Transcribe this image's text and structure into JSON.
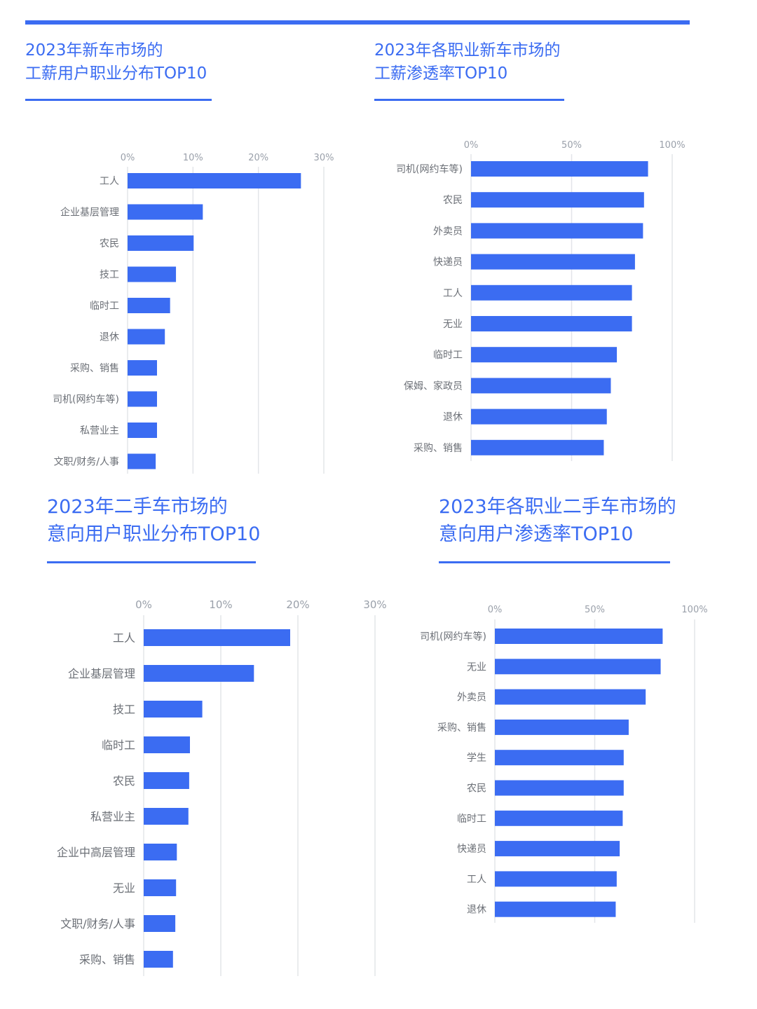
{
  "colors": {
    "accent": "#3b6cf2",
    "grid": "#e3e5e9",
    "tick_text": "#9aa0aa",
    "label_text": "#6b6f76"
  },
  "panels": [
    {
      "title_line1": "2023年新车市场的",
      "title_line2": "工薪用户职业分布TOP10"
    },
    {
      "title_line1": "2023年各职业新车市场的",
      "title_line2": "工薪渗透率TOP10"
    },
    {
      "title_line1": "2023年二手车市场的",
      "title_line2": "意向用户职业分布TOP10"
    },
    {
      "title_line1": "2023年各职业二手车市场的",
      "title_line2": "意向用户渗透率TOP10"
    }
  ],
  "chart_data": [
    {
      "type": "bar",
      "orientation": "horizontal",
      "title": "2023年新车市场的工薪用户职业分布TOP10",
      "categories": [
        "工人",
        "企业基层管理",
        "农民",
        "技工",
        "临时工",
        "退休",
        "采购、销售",
        "司机(网约车等)",
        "私营业主",
        "文职/财务/人事"
      ],
      "values": [
        26.5,
        11.5,
        10.1,
        7.4,
        6.5,
        5.7,
        4.5,
        4.5,
        4.5,
        4.3
      ],
      "x_ticks": [
        "0%",
        "10%",
        "20%",
        "30%"
      ],
      "xlim": [
        0,
        30
      ],
      "unit": "%",
      "grid": true
    },
    {
      "type": "bar",
      "orientation": "horizontal",
      "title": "2023年各职业新车市场的工薪渗透率TOP10",
      "categories": [
        "司机(网约车等)",
        "农民",
        "外卖员",
        "快递员",
        "工人",
        "无业",
        "临时工",
        "保姆、家政员",
        "退休",
        "采购、销售"
      ],
      "values": [
        88,
        86,
        85.5,
        81.5,
        80,
        80,
        72.5,
        69.5,
        67.5,
        66
      ],
      "x_ticks": [
        "0%",
        "50%",
        "100%"
      ],
      "xlim": [
        0,
        100
      ],
      "unit": "%",
      "grid": true
    },
    {
      "type": "bar",
      "orientation": "horizontal",
      "title": "2023年二手车市场的意向用户职业分布TOP10",
      "categories": [
        "工人",
        "企业基层管理",
        "技工",
        "临时工",
        "农民",
        "私营业主",
        "企业中高层管理",
        "无业",
        "文职/财务/人事",
        "采购、销售"
      ],
      "values": [
        19,
        14.3,
        7.6,
        6,
        5.9,
        5.8,
        4.3,
        4.2,
        4.1,
        3.8
      ],
      "x_ticks": [
        "0%",
        "10%",
        "20%",
        "30%"
      ],
      "xlim": [
        0,
        30
      ],
      "unit": "%",
      "grid": true
    },
    {
      "type": "bar",
      "orientation": "horizontal",
      "title": "2023年各职业二手车市场的意向用户渗透率TOP10",
      "categories": [
        "司机(网约车等)",
        "无业",
        "外卖员",
        "采购、销售",
        "学生",
        "农民",
        "临时工",
        "快递员",
        "工人",
        "退休"
      ],
      "values": [
        84,
        83,
        75.5,
        67,
        64.5,
        64.5,
        64,
        62.5,
        61,
        60.5
      ],
      "x_ticks": [
        "0%",
        "50%",
        "100%"
      ],
      "xlim": [
        0,
        100
      ],
      "unit": "%",
      "grid": true
    }
  ]
}
